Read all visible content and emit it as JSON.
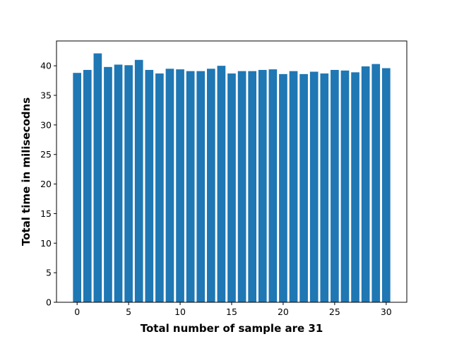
{
  "chart_data": {
    "type": "bar",
    "title": "",
    "xlabel": "Total number of sample are 31",
    "ylabel": "Total time in milisecodns",
    "x": [
      0,
      1,
      2,
      3,
      4,
      5,
      6,
      7,
      8,
      9,
      10,
      11,
      12,
      13,
      14,
      15,
      16,
      17,
      18,
      19,
      20,
      21,
      22,
      23,
      24,
      25,
      26,
      27,
      28,
      29,
      30
    ],
    "values": [
      38.8,
      39.3,
      42.1,
      39.8,
      40.2,
      40.1,
      41.0,
      39.3,
      38.7,
      39.5,
      39.4,
      39.1,
      39.1,
      39.5,
      40.0,
      38.7,
      39.1,
      39.1,
      39.3,
      39.4,
      38.6,
      39.1,
      38.6,
      39.0,
      38.7,
      39.3,
      39.2,
      38.9,
      39.9,
      40.3,
      39.6
    ],
    "xlim": [
      -2.0,
      32.0
    ],
    "ylim": [
      0,
      44.2
    ],
    "xticks": [
      0,
      5,
      10,
      15,
      20,
      25,
      30
    ],
    "yticks": [
      0,
      5,
      10,
      15,
      20,
      25,
      30,
      35,
      40
    ],
    "bar_width": 0.8,
    "grid": false,
    "legend": "none",
    "colors": {
      "bar": "#1f77b4",
      "axis": "#000000",
      "background": "#ffffff"
    }
  }
}
